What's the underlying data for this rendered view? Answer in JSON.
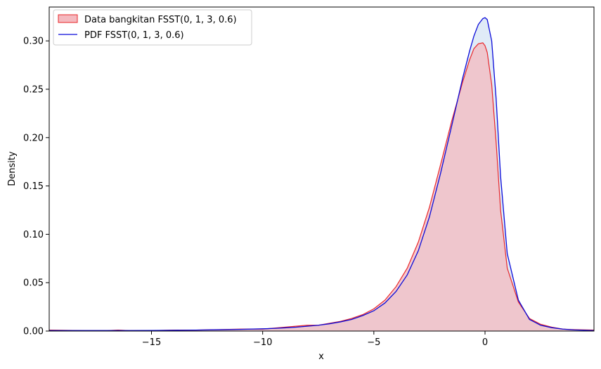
{
  "chart_data": {
    "type": "area",
    "title": "",
    "xlabel": "x",
    "ylabel": "Density",
    "xlim": [
      -19.6,
      4.9
    ],
    "ylim": [
      0,
      0.335
    ],
    "xticks": [
      -15,
      -10,
      -5,
      0
    ],
    "yticks": [
      0.0,
      0.05,
      0.1,
      0.15,
      0.2,
      0.25,
      0.3
    ],
    "xtick_labels": [
      "−15",
      "−10",
      "−5",
      "0"
    ],
    "ytick_labels": [
      "0.00",
      "0.05",
      "0.10",
      "0.15",
      "0.20",
      "0.25",
      "0.30"
    ],
    "grid": false,
    "legend_position": "top-left",
    "series": [
      {
        "name": "Data bangkitan FSST(0, 1, 3, 0.6)",
        "kind": "filled-kde",
        "line_color": "#e8262a",
        "fill_color": "#f4b9bf",
        "x": [
          -19.6,
          -18.0,
          -17.0,
          -16.5,
          -16.0,
          -15.0,
          -14.0,
          -13.0,
          -12.0,
          -11.0,
          -10.0,
          -9.5,
          -9.0,
          -8.5,
          -8.0,
          -7.5,
          -7.0,
          -6.5,
          -6.0,
          -5.5,
          -5.0,
          -4.5,
          -4.0,
          -3.5,
          -3.0,
          -2.5,
          -2.0,
          -1.5,
          -1.0,
          -0.7,
          -0.5,
          -0.3,
          -0.1,
          0.0,
          0.1,
          0.3,
          0.5,
          0.7,
          1.0,
          1.5,
          2.0,
          2.5,
          3.0,
          3.5,
          4.0,
          4.9
        ],
        "y": [
          0.001,
          0.0005,
          0.0005,
          0.001,
          0.0005,
          0.0005,
          0.001,
          0.001,
          0.0015,
          0.002,
          0.002,
          0.003,
          0.004,
          0.005,
          0.006,
          0.006,
          0.008,
          0.01,
          0.013,
          0.017,
          0.023,
          0.032,
          0.046,
          0.065,
          0.092,
          0.128,
          0.172,
          0.217,
          0.258,
          0.28,
          0.292,
          0.297,
          0.298,
          0.295,
          0.288,
          0.255,
          0.195,
          0.125,
          0.065,
          0.03,
          0.013,
          0.007,
          0.004,
          0.002,
          0.0015,
          0.001
        ]
      },
      {
        "name": "PDF FSST(0, 1, 3, 0.6)",
        "kind": "line",
        "line_color": "#0a0ad9",
        "fill_color": "#dde9f6",
        "x": [
          -19.6,
          -18.0,
          -17.0,
          -16.5,
          -16.0,
          -15.0,
          -14.0,
          -13.0,
          -12.0,
          -11.0,
          -10.0,
          -9.5,
          -9.0,
          -8.5,
          -8.0,
          -7.5,
          -7.0,
          -6.5,
          -6.0,
          -5.5,
          -5.0,
          -4.5,
          -4.0,
          -3.5,
          -3.0,
          -2.5,
          -2.0,
          -1.5,
          -1.0,
          -0.7,
          -0.5,
          -0.3,
          -0.1,
          0.0,
          0.1,
          0.3,
          0.5,
          0.7,
          1.0,
          1.5,
          2.0,
          2.5,
          3.0,
          3.5,
          4.0,
          4.9
        ],
        "y": [
          0.0005,
          0.0005,
          0.0005,
          0.0005,
          0.0005,
          0.0006,
          0.0008,
          0.001,
          0.0013,
          0.0017,
          0.0023,
          0.0027,
          0.0033,
          0.004,
          0.005,
          0.006,
          0.0075,
          0.0095,
          0.012,
          0.016,
          0.021,
          0.029,
          0.041,
          0.058,
          0.083,
          0.118,
          0.163,
          0.212,
          0.262,
          0.289,
          0.305,
          0.317,
          0.323,
          0.324,
          0.322,
          0.3,
          0.24,
          0.16,
          0.08,
          0.032,
          0.012,
          0.006,
          0.0035,
          0.002,
          0.0012,
          0.0005
        ]
      }
    ]
  }
}
